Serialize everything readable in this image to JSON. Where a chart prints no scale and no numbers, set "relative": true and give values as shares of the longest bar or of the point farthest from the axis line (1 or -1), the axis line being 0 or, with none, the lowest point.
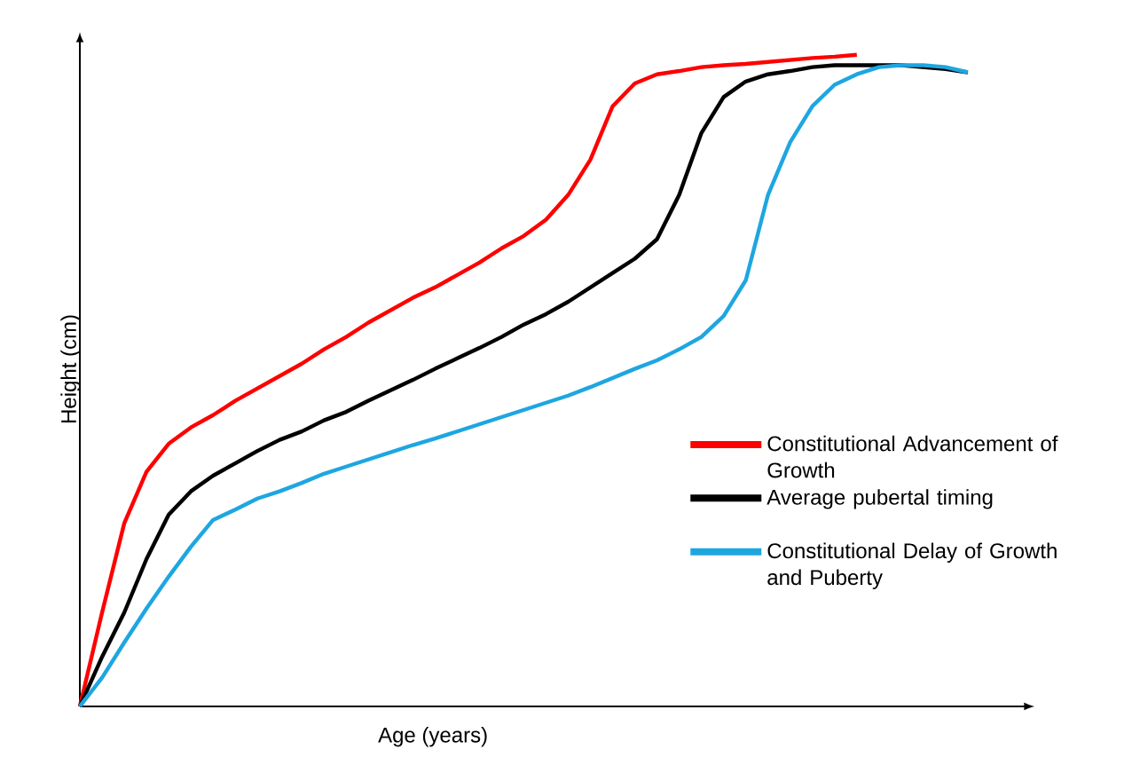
{
  "chart_data": {
    "type": "line",
    "relative": true,
    "xlabel": "Age  (years)",
    "ylabel": "Height (cm)",
    "legend": "right",
    "categories": [
      null,
      null,
      null,
      null,
      null,
      null,
      null,
      null,
      null,
      null,
      null,
      null,
      null,
      null,
      null,
      null,
      null,
      null,
      null,
      null,
      null,
      null,
      null,
      null,
      null,
      null,
      null,
      null,
      null,
      null,
      null,
      null,
      null,
      null,
      null,
      null,
      null,
      null,
      null,
      null,
      null
    ],
    "series": [
      {
        "name": "Constitutional Advancement of Growth",
        "color": "#ff0000",
        "values": [
          0,
          0.144,
          0.281,
          0.36,
          0.403,
          0.428,
          0.447,
          0.469,
          0.488,
          0.507,
          0.526,
          0.548,
          0.567,
          0.589,
          0.608,
          0.627,
          0.643,
          0.662,
          0.681,
          0.703,
          0.722,
          0.747,
          0.785,
          0.839,
          0.921,
          0.956,
          0.97,
          0.975,
          0.981,
          0.984,
          0.986,
          0.989,
          0.992,
          0.995,
          0.997,
          1.0,
          null,
          null,
          null,
          null,
          null
        ]
      },
      {
        "name": "Average pubertal timing",
        "color": "#000000",
        "values": [
          0,
          0.076,
          0.144,
          0.226,
          0.294,
          0.33,
          0.354,
          0.373,
          0.392,
          0.409,
          0.422,
          0.439,
          0.452,
          0.469,
          0.485,
          0.501,
          0.518,
          0.534,
          0.55,
          0.567,
          0.586,
          0.602,
          0.621,
          0.643,
          0.665,
          0.687,
          0.717,
          0.785,
          0.88,
          0.935,
          0.959,
          0.97,
          0.975,
          0.981,
          0.984,
          0.984,
          0.984,
          0.984,
          0.981,
          0.978,
          0.973
        ]
      },
      {
        "name": "Constitutional Delay of Growth and Puberty",
        "color": "#1ea6e0",
        "values": [
          0,
          0.044,
          0.098,
          0.15,
          0.199,
          0.245,
          0.286,
          0.302,
          0.319,
          0.33,
          0.343,
          0.357,
          0.368,
          0.379,
          0.39,
          0.401,
          0.411,
          0.422,
          0.433,
          0.444,
          0.455,
          0.466,
          0.477,
          0.49,
          0.504,
          0.518,
          0.531,
          0.548,
          0.567,
          0.599,
          0.654,
          0.785,
          0.866,
          0.921,
          0.954,
          0.97,
          0.981,
          0.984,
          0.984,
          0.981,
          0.973
        ]
      }
    ]
  }
}
